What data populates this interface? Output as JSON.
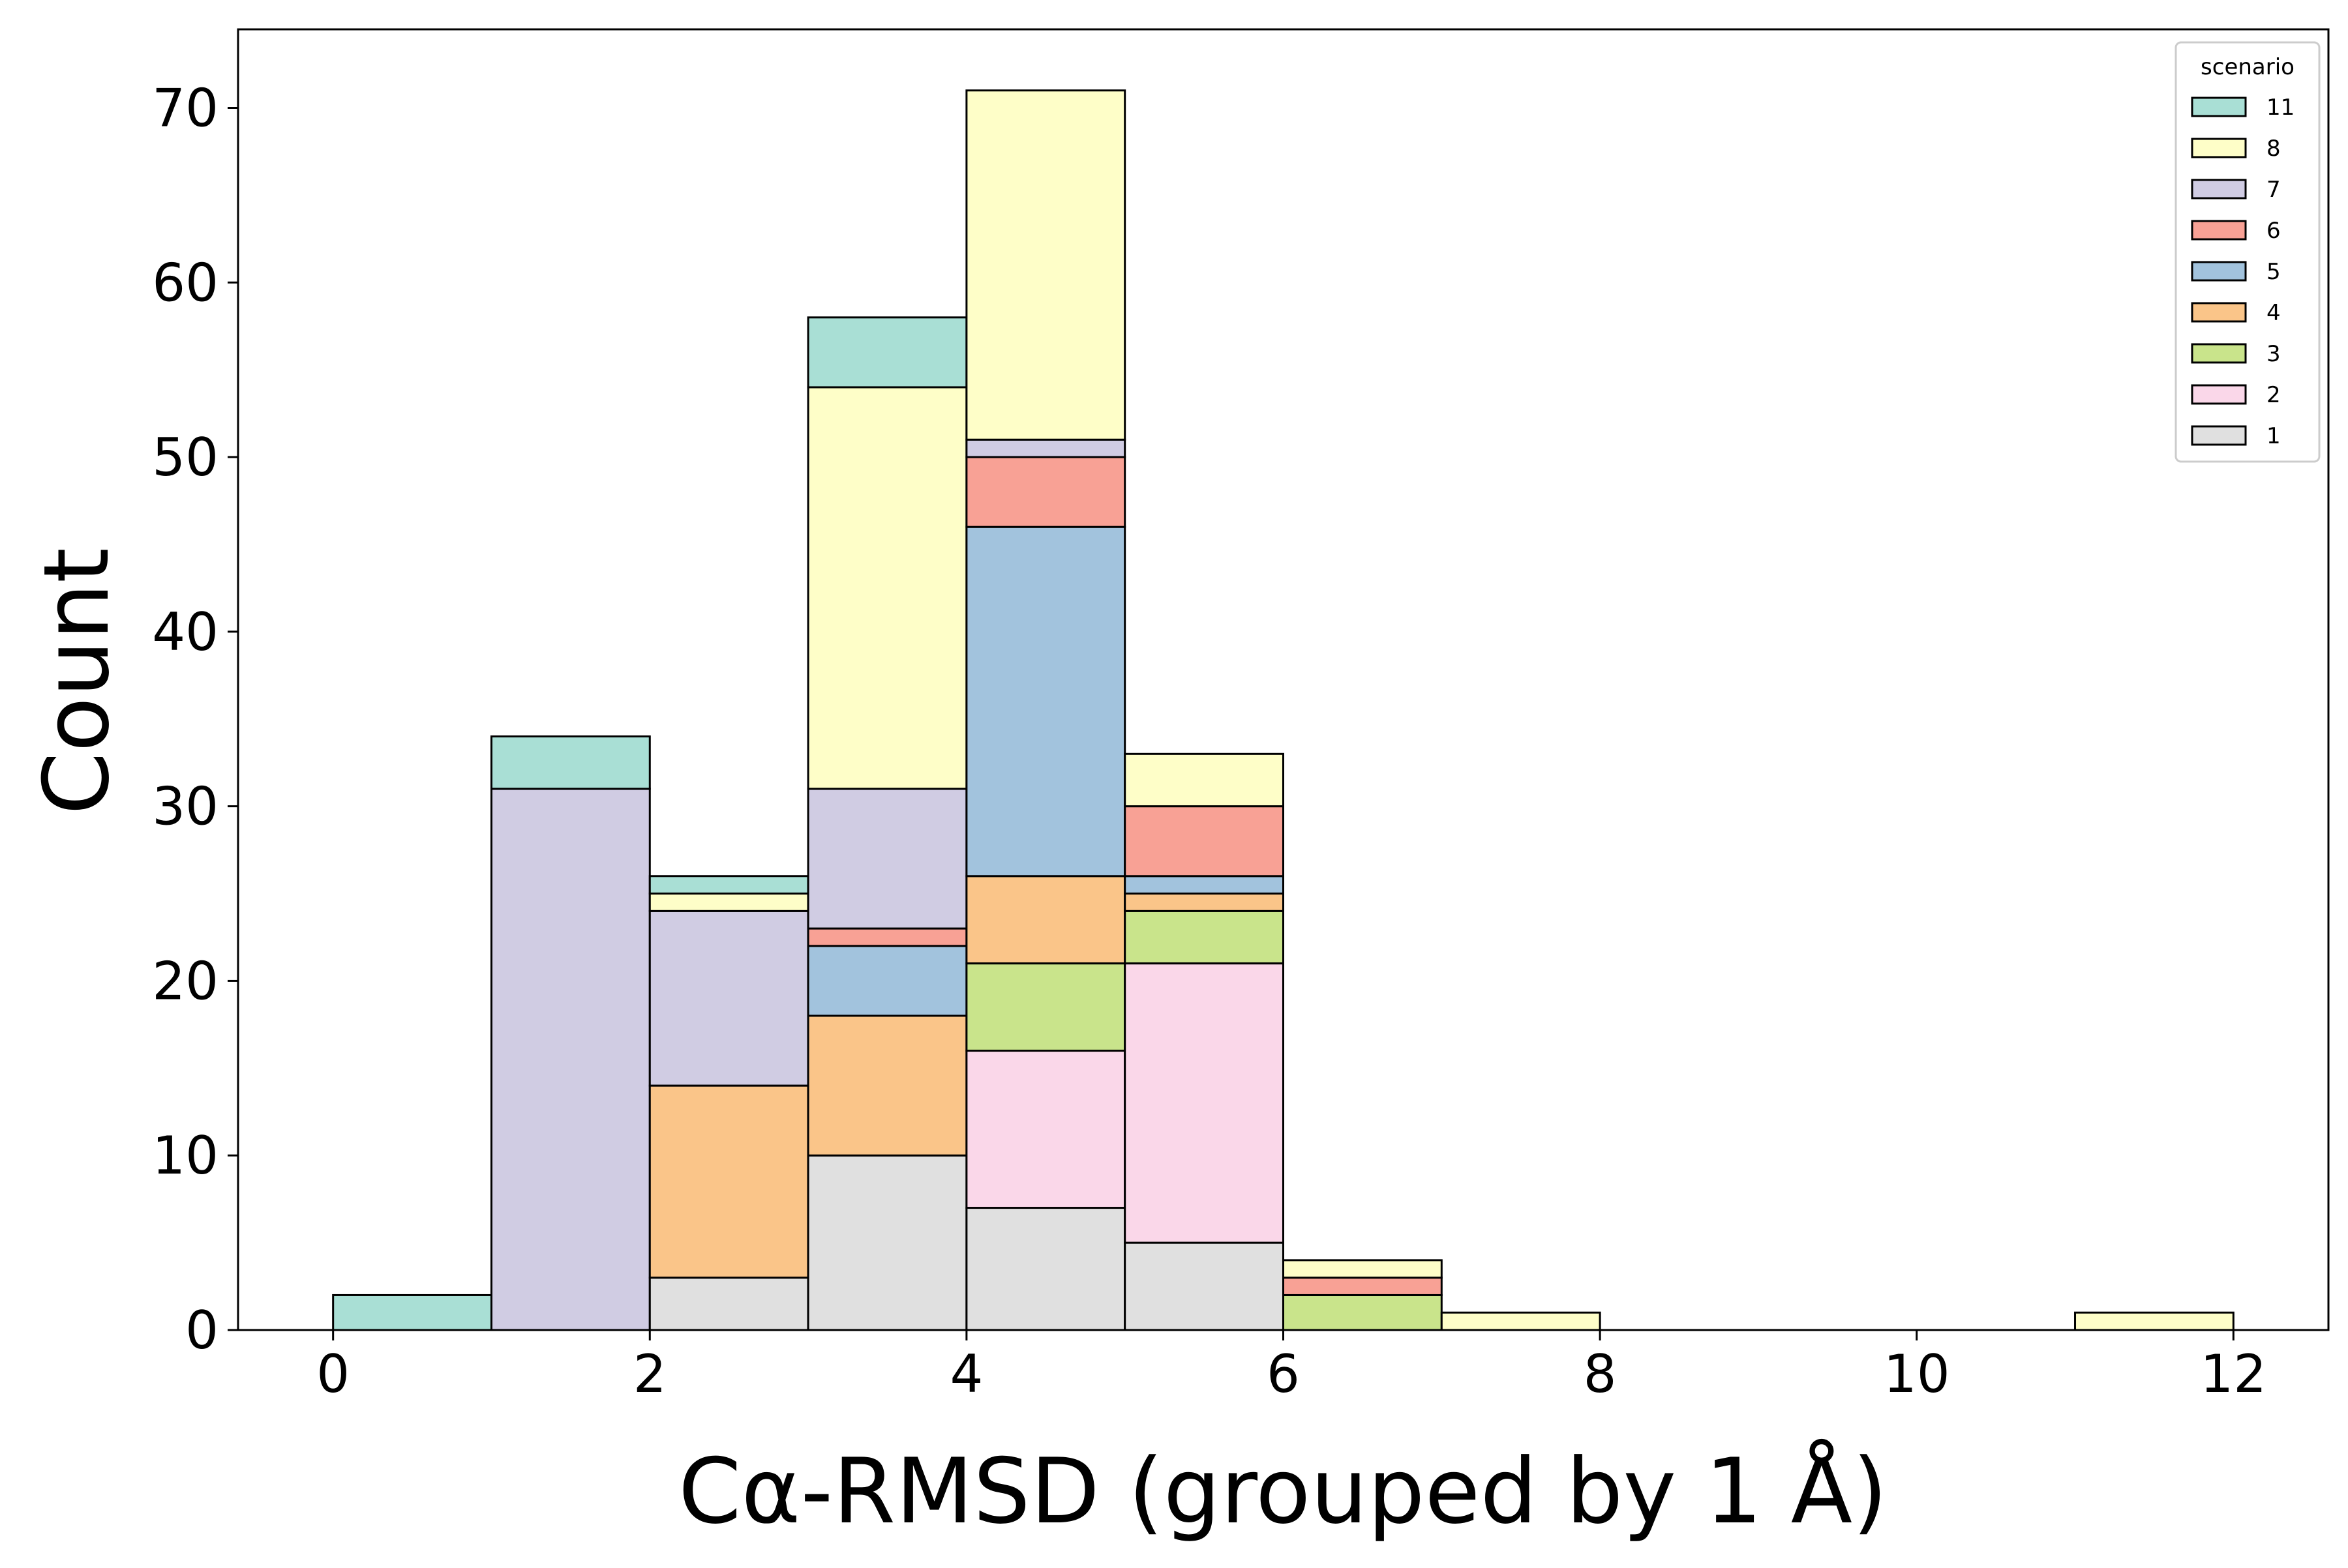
{
  "chart_data": {
    "type": "bar",
    "stacked": true,
    "histogram": true,
    "title": "",
    "xlabel": "Cα-RMSD (grouped by 1 Å)",
    "ylabel": "Count",
    "xlim": [
      -0.6,
      12.6
    ],
    "ylim": [
      0,
      74.5
    ],
    "xticks": [
      0,
      2,
      4,
      6,
      8,
      10,
      12
    ],
    "yticks": [
      0,
      10,
      20,
      30,
      40,
      50,
      60,
      70
    ],
    "bin_edges": [
      0,
      1,
      2,
      3,
      4,
      5,
      6,
      7,
      8,
      9,
      10,
      11,
      12
    ],
    "grid": false,
    "legend": {
      "title": "scenario",
      "placement": "top-right",
      "order": [
        "11",
        "8",
        "7",
        "6",
        "5",
        "4",
        "3",
        "2",
        "1"
      ]
    },
    "series": [
      {
        "name": "1",
        "color": "#e0e0e0",
        "values": [
          0,
          0,
          3,
          10,
          7,
          5,
          0,
          0,
          0,
          0,
          0,
          0
        ]
      },
      {
        "name": "2",
        "color": "#fad7e9",
        "values": [
          0,
          0,
          0,
          0,
          9,
          16,
          0,
          0,
          0,
          0,
          0,
          0
        ]
      },
      {
        "name": "3",
        "color": "#c9e48b",
        "values": [
          0,
          0,
          0,
          0,
          5,
          3,
          2,
          0,
          0,
          0,
          0,
          0
        ]
      },
      {
        "name": "4",
        "color": "#fac589",
        "values": [
          0,
          0,
          11,
          8,
          5,
          1,
          0,
          0,
          0,
          0,
          0,
          0
        ]
      },
      {
        "name": "5",
        "color": "#a2c3dd",
        "values": [
          0,
          0,
          0,
          4,
          20,
          1,
          0,
          0,
          0,
          0,
          0,
          0
        ]
      },
      {
        "name": "6",
        "color": "#f8a195",
        "values": [
          0,
          0,
          0,
          1,
          4,
          4,
          1,
          0,
          0,
          0,
          0,
          0
        ]
      },
      {
        "name": "7",
        "color": "#d0cce3",
        "values": [
          0,
          31,
          10,
          8,
          1,
          0,
          0,
          0,
          0,
          0,
          0,
          0
        ]
      },
      {
        "name": "8",
        "color": "#fefec8",
        "values": [
          0,
          0,
          1,
          23,
          20,
          3,
          1,
          1,
          0,
          0,
          0,
          1
        ]
      },
      {
        "name": "11",
        "color": "#a9dfd5",
        "values": [
          2,
          3,
          1,
          4,
          0,
          0,
          0,
          0,
          0,
          0,
          0,
          0
        ]
      }
    ]
  }
}
